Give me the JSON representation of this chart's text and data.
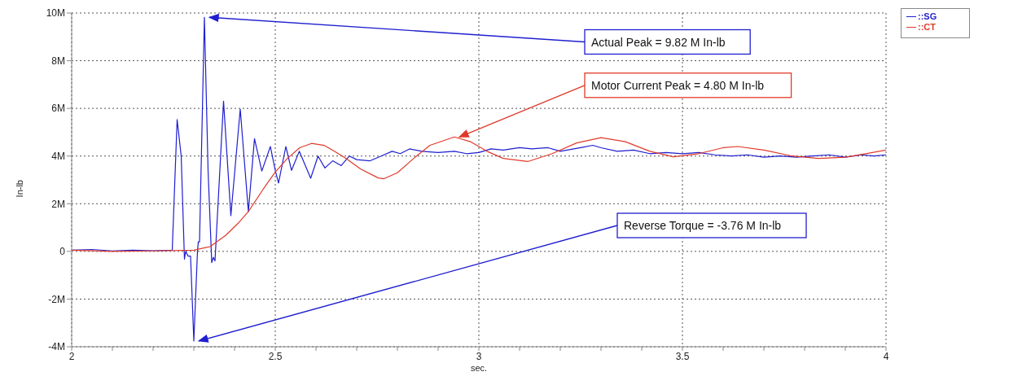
{
  "chart_data": {
    "type": "line",
    "xlabel": "sec.",
    "ylabel": "In-lb",
    "xlim": [
      2,
      4
    ],
    "ylim": [
      -4,
      10
    ],
    "xticks": [
      2,
      {
        "value": 2.1,
        "label": null
      },
      {
        "value": 2.2,
        "label": null
      },
      {
        "value": 2.3,
        "label": null
      },
      {
        "value": 2.4,
        "label": null
      },
      2.5,
      {
        "value": 2.6,
        "label": null
      },
      {
        "value": 2.7,
        "label": null
      },
      {
        "value": 2.8,
        "label": null
      },
      {
        "value": 2.9,
        "label": null
      },
      3,
      {
        "value": 3.1,
        "label": null
      },
      {
        "value": 3.2,
        "label": null
      },
      {
        "value": 3.3,
        "label": null
      },
      {
        "value": 3.4,
        "label": null
      },
      3.5,
      {
        "value": 3.6,
        "label": null
      },
      {
        "value": 3.7,
        "label": null
      },
      {
        "value": 3.8,
        "label": null
      },
      {
        "value": 3.9,
        "label": null
      },
      4
    ],
    "yticks": [
      {
        "value": -4,
        "label": "-4M"
      },
      {
        "value": -2,
        "label": "-2M"
      },
      0,
      {
        "value": 2,
        "label": "2M"
      },
      {
        "value": 4,
        "label": "4M"
      },
      {
        "value": 6,
        "label": "6M"
      },
      {
        "value": 8,
        "label": "8M"
      },
      {
        "value": 10,
        "label": "10M"
      }
    ],
    "grid": true,
    "legend": "top right",
    "marker": "none",
    "line_style": "solid",
    "series": [
      {
        "name": "::SG",
        "color": "#1f1fd0",
        "x": [
          2.0,
          2.05,
          2.1,
          2.15,
          2.2,
          2.247,
          2.259,
          2.269,
          2.277,
          2.28,
          2.286,
          2.292,
          2.3,
          2.309,
          2.311,
          2.314,
          2.326,
          2.335,
          2.344,
          2.348,
          2.352,
          2.373,
          2.391,
          2.414,
          2.434,
          2.449,
          2.467,
          2.488,
          2.5,
          2.508,
          2.526,
          2.54,
          2.559,
          2.587,
          2.605,
          2.622,
          2.641,
          2.662,
          2.682,
          2.7,
          2.733,
          2.76,
          2.787,
          2.807,
          2.83,
          2.86,
          2.9,
          2.94,
          2.97,
          3.0,
          3.03,
          3.06,
          3.1,
          3.13,
          3.17,
          3.2,
          3.25,
          3.28,
          3.3,
          3.34,
          3.38,
          3.42,
          3.46,
          3.5,
          3.54,
          3.58,
          3.62,
          3.66,
          3.7,
          3.74,
          3.78,
          3.82,
          3.86,
          3.9,
          3.94,
          3.97,
          4.0
        ],
        "values": [
          0.05,
          0.08,
          0.02,
          0.05,
          0.03,
          0.05,
          5.53,
          4.0,
          -0.33,
          0.0,
          -0.2,
          -0.2,
          -3.76,
          0.0,
          0.4,
          0.4,
          9.82,
          3.4,
          -0.47,
          -0.25,
          -0.4,
          6.3,
          1.5,
          5.97,
          1.67,
          4.73,
          3.37,
          4.4,
          3.4,
          2.87,
          4.4,
          3.4,
          4.2,
          3.07,
          4.0,
          3.5,
          3.8,
          3.6,
          4.0,
          3.85,
          3.8,
          4.0,
          4.2,
          4.1,
          4.3,
          4.2,
          4.15,
          4.2,
          4.1,
          4.15,
          4.3,
          4.25,
          4.35,
          4.3,
          4.35,
          4.2,
          4.35,
          4.45,
          4.35,
          4.2,
          4.25,
          4.1,
          4.15,
          4.1,
          4.15,
          4.05,
          4.0,
          4.05,
          3.95,
          4.0,
          3.95,
          4.0,
          4.05,
          3.95,
          4.05,
          4.0,
          4.05
        ]
      },
      {
        "name": "::CT",
        "color": "#e03a2a",
        "x": [
          2.0,
          2.1,
          2.2,
          2.3,
          2.34,
          2.378,
          2.41,
          2.434,
          2.47,
          2.5,
          2.53,
          2.56,
          2.589,
          2.62,
          2.65,
          2.674,
          2.71,
          2.753,
          2.767,
          2.8,
          2.84,
          2.88,
          2.94,
          2.98,
          3.02,
          3.06,
          3.12,
          3.18,
          3.24,
          3.3,
          3.36,
          3.42,
          3.478,
          3.54,
          3.6,
          3.636,
          3.7,
          3.77,
          3.834,
          3.9,
          3.95,
          4.0
        ],
        "values": [
          0.05,
          0.0,
          0.02,
          0.05,
          0.2,
          0.67,
          1.2,
          1.67,
          2.6,
          3.33,
          3.9,
          4.35,
          4.53,
          4.45,
          4.15,
          3.9,
          3.45,
          3.08,
          3.05,
          3.3,
          3.9,
          4.45,
          4.8,
          4.6,
          4.2,
          3.9,
          3.77,
          4.1,
          4.55,
          4.77,
          4.6,
          4.2,
          3.97,
          4.1,
          4.35,
          4.4,
          4.25,
          4.0,
          3.9,
          3.95,
          4.1,
          4.25
        ]
      }
    ],
    "annotations": [
      {
        "text": "Actual Peak = 9.82 M In-lb",
        "x": 2.326,
        "y": 9.82
      },
      {
        "text": "Motor Current Peak = 4.80 M In-lb",
        "x": 2.94,
        "y": 4.8
      },
      {
        "text": "Reverse Torque = -3.76 M In-lb",
        "x": 2.3,
        "y": -3.76
      }
    ]
  }
}
